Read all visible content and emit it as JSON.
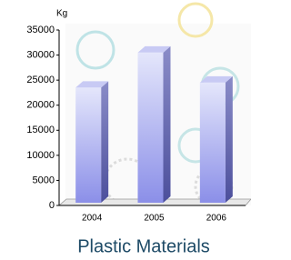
{
  "chart_data": {
    "type": "bar3d",
    "title": "Plastic Materials",
    "y_label": "Kg",
    "categories": [
      "2004",
      "2005",
      "2006"
    ],
    "values": [
      23500,
      30500,
      24500
    ],
    "color": "#9a9ef0",
    "ylim": [
      0,
      35000
    ],
    "yticks": [
      0,
      5000,
      10000,
      15000,
      20000,
      25000,
      30000,
      35000
    ],
    "grid": false
  }
}
